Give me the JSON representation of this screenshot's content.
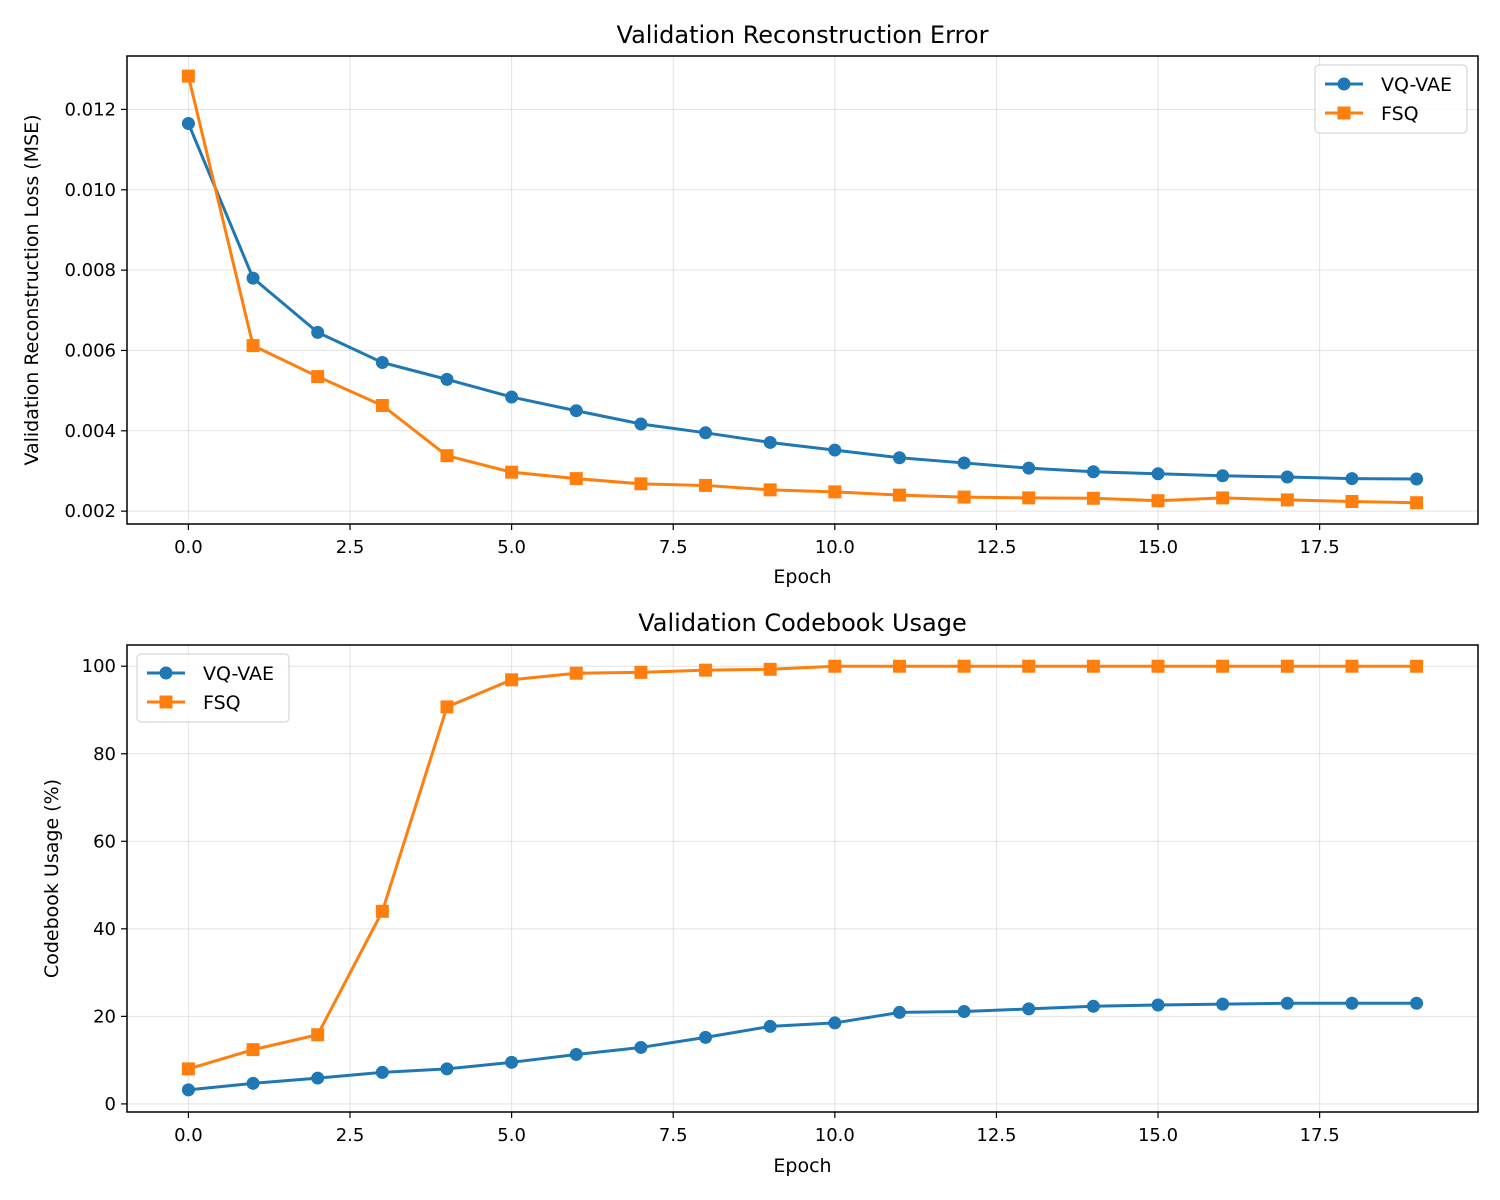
{
  "chart_data": [
    {
      "type": "line",
      "title": "Validation Reconstruction Error",
      "xlabel": "Epoch",
      "ylabel": "Validation Reconstruction Loss (MSE)",
      "xlim": [
        -0.95,
        19.95
      ],
      "ylim": [
        0.00168,
        0.01333
      ],
      "xticks": [
        0.0,
        2.5,
        5.0,
        7.5,
        10.0,
        12.5,
        15.0,
        17.5
      ],
      "xtick_labels": [
        "0.0",
        "2.5",
        "5.0",
        "7.5",
        "10.0",
        "12.5",
        "15.0",
        "17.5"
      ],
      "yticks": [
        0.002,
        0.004,
        0.006,
        0.008,
        0.01,
        0.012
      ],
      "ytick_labels": [
        "0.002",
        "0.004",
        "0.006",
        "0.008",
        "0.010",
        "0.012"
      ],
      "grid": true,
      "legend_position": "top-right",
      "x": [
        0,
        1,
        2,
        3,
        4,
        5,
        6,
        7,
        8,
        9,
        10,
        11,
        12,
        13,
        14,
        15,
        16,
        17,
        18,
        19
      ],
      "series": [
        {
          "name": "VQ-VAE",
          "color": "#1f77b4",
          "marker": "circle",
          "values": [
            0.01165,
            0.0078,
            0.00645,
            0.0057,
            0.00528,
            0.00484,
            0.0045,
            0.00417,
            0.00395,
            0.00371,
            0.00352,
            0.00333,
            0.0032,
            0.00307,
            0.00298,
            0.00293,
            0.00288,
            0.00285,
            0.00281,
            0.0028
          ]
        },
        {
          "name": "FSQ",
          "color": "#ff7f0e",
          "marker": "square",
          "values": [
            0.01283,
            0.00612,
            0.00535,
            0.00463,
            0.00338,
            0.00297,
            0.00281,
            0.00268,
            0.00264,
            0.00253,
            0.00248,
            0.0024,
            0.00235,
            0.00233,
            0.00232,
            0.00226,
            0.00233,
            0.00228,
            0.00224,
            0.00221
          ]
        }
      ]
    },
    {
      "type": "line",
      "title": "Validation Codebook Usage",
      "xlabel": "Epoch",
      "ylabel": "Codebook Usage (%)",
      "xlim": [
        -0.95,
        19.95
      ],
      "ylim": [
        -1.85,
        104.85
      ],
      "xticks": [
        0.0,
        2.5,
        5.0,
        7.5,
        10.0,
        12.5,
        15.0,
        17.5
      ],
      "xtick_labels": [
        "0.0",
        "2.5",
        "5.0",
        "7.5",
        "10.0",
        "12.5",
        "15.0",
        "17.5"
      ],
      "yticks": [
        0,
        20,
        40,
        60,
        80,
        100
      ],
      "ytick_labels": [
        "0",
        "20",
        "40",
        "60",
        "80",
        "100"
      ],
      "grid": true,
      "legend_position": "top-left",
      "x": [
        0,
        1,
        2,
        3,
        4,
        5,
        6,
        7,
        8,
        9,
        10,
        11,
        12,
        13,
        14,
        15,
        16,
        17,
        18,
        19
      ],
      "series": [
        {
          "name": "VQ-VAE",
          "color": "#1f77b4",
          "marker": "circle",
          "values": [
            3.2,
            4.7,
            5.9,
            7.2,
            8.0,
            9.5,
            11.3,
            12.9,
            15.2,
            17.7,
            18.5,
            20.9,
            21.1,
            21.7,
            22.3,
            22.6,
            22.8,
            23.0,
            23.0,
            23.0
          ]
        },
        {
          "name": "FSQ",
          "color": "#ff7f0e",
          "marker": "square",
          "values": [
            8.0,
            12.4,
            15.8,
            44.0,
            90.7,
            96.9,
            98.4,
            98.6,
            99.1,
            99.3,
            100.0,
            100.0,
            100.0,
            100.0,
            100.0,
            100.0,
            100.0,
            100.0,
            100.0,
            100.0
          ]
        }
      ]
    }
  ]
}
